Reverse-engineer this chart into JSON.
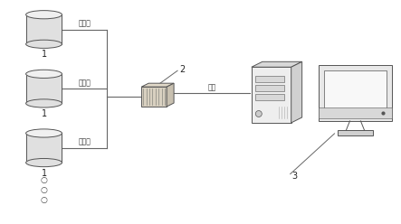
{
  "bg_color": "#ffffff",
  "label_1": "1",
  "label_2": "2",
  "label_3": "3",
  "serial_label": "串口线",
  "network_label": "网线",
  "line_color": "#666666",
  "stroke_color": "#555555",
  "cyl_fill": "#e0e0e0",
  "cyl_top_fill": "#f0f0f0",
  "switch_fill": "#d8d0c0",
  "tower_fill": "#eeeeee",
  "monitor_fill": "#e8e8e8",
  "screen_fill": "#f8f8f8",
  "dots_count": 3
}
